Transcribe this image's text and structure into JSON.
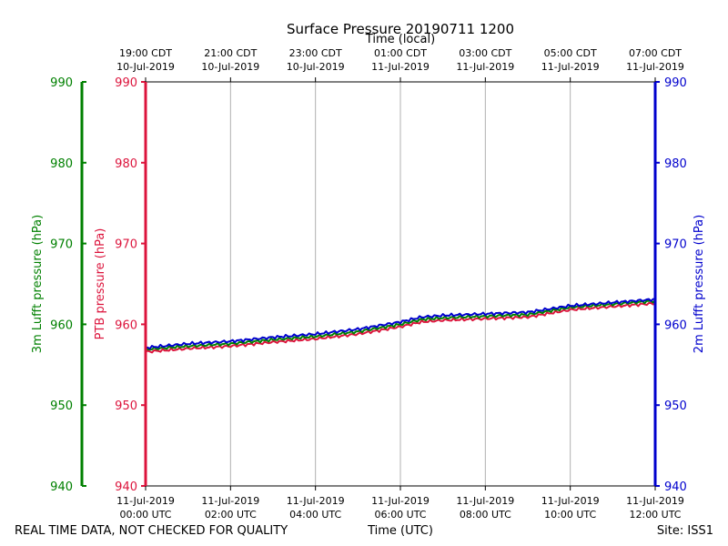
{
  "chart_data": {
    "type": "line",
    "title": "Surface Pressure 20190711 1200",
    "xlabel_top": "Time (local)",
    "xlabel_bottom": "Time (UTC)",
    "ylabel_outer_left": "3m Lufft pressure (hPa)",
    "ylabel_inner_left": "PTB pressure (hPa)",
    "ylabel_right": "2m Lufft pressure (hPa)",
    "xlim_hours": [
      0,
      12
    ],
    "ylim": [
      940,
      990
    ],
    "yticks": [
      940,
      950,
      960,
      970,
      980,
      990
    ],
    "grid": "vertical",
    "colors": {
      "ptb": "#dc143c",
      "lufft3m": "#008000",
      "lufft2m": "#0000cd",
      "grid": "#b0b0b0",
      "axis": "#000000"
    },
    "bottom_ticks": [
      {
        "hour": 0,
        "line1": "11-Jul-2019",
        "line2": "00:00 UTC"
      },
      {
        "hour": 2,
        "line1": "11-Jul-2019",
        "line2": "02:00 UTC"
      },
      {
        "hour": 4,
        "line1": "11-Jul-2019",
        "line2": "04:00 UTC"
      },
      {
        "hour": 6,
        "line1": "11-Jul-2019",
        "line2": "06:00 UTC"
      },
      {
        "hour": 8,
        "line1": "11-Jul-2019",
        "line2": "08:00 UTC"
      },
      {
        "hour": 10,
        "line1": "11-Jul-2019",
        "line2": "10:00 UTC"
      },
      {
        "hour": 12,
        "line1": "11-Jul-2019",
        "line2": "12:00 UTC"
      }
    ],
    "top_ticks": [
      {
        "hour": 0,
        "line1": "19:00 CDT",
        "line2": "10-Jul-2019"
      },
      {
        "hour": 2,
        "line1": "21:00 CDT",
        "line2": "10-Jul-2019"
      },
      {
        "hour": 4,
        "line1": "23:00 CDT",
        "line2": "10-Jul-2019"
      },
      {
        "hour": 6,
        "line1": "01:00 CDT",
        "line2": "11-Jul-2019"
      },
      {
        "hour": 8,
        "line1": "03:00 CDT",
        "line2": "11-Jul-2019"
      },
      {
        "hour": 10,
        "line1": "05:00 CDT",
        "line2": "11-Jul-2019"
      },
      {
        "hour": 12,
        "line1": "07:00 CDT",
        "line2": "11-Jul-2019"
      }
    ],
    "series": [
      {
        "name": "PTB pressure",
        "key": "ptb",
        "x": [
          0,
          1,
          2,
          3,
          4,
          5,
          6,
          6.5,
          7,
          8,
          9,
          10,
          11,
          12
        ],
        "y": [
          956.6,
          957.0,
          957.3,
          957.8,
          958.2,
          958.8,
          959.7,
          960.3,
          960.5,
          960.7,
          960.9,
          961.8,
          962.2,
          962.6
        ]
      },
      {
        "name": "3m Lufft pressure",
        "key": "lufft3m",
        "x": [
          0,
          1,
          2,
          3,
          4,
          5,
          6,
          6.5,
          7,
          8,
          9,
          10,
          11,
          12
        ],
        "y": [
          956.9,
          957.3,
          957.6,
          958.1,
          958.5,
          959.1,
          960.0,
          960.6,
          960.8,
          961.0,
          961.2,
          962.1,
          962.5,
          962.9
        ]
      },
      {
        "name": "2m Lufft pressure",
        "key": "lufft2m",
        "x": [
          0,
          1,
          2,
          3,
          4,
          5,
          6,
          6.5,
          7,
          8,
          9,
          10,
          11,
          12
        ],
        "y": [
          957.1,
          957.6,
          957.9,
          958.4,
          958.8,
          959.4,
          960.3,
          960.9,
          961.1,
          961.3,
          961.5,
          962.3,
          962.7,
          963.1
        ]
      }
    ]
  },
  "footer": {
    "left": "REAL TIME DATA, NOT CHECKED FOR QUALITY",
    "center": "Time (UTC)",
    "right": "Site: ISS1"
  }
}
